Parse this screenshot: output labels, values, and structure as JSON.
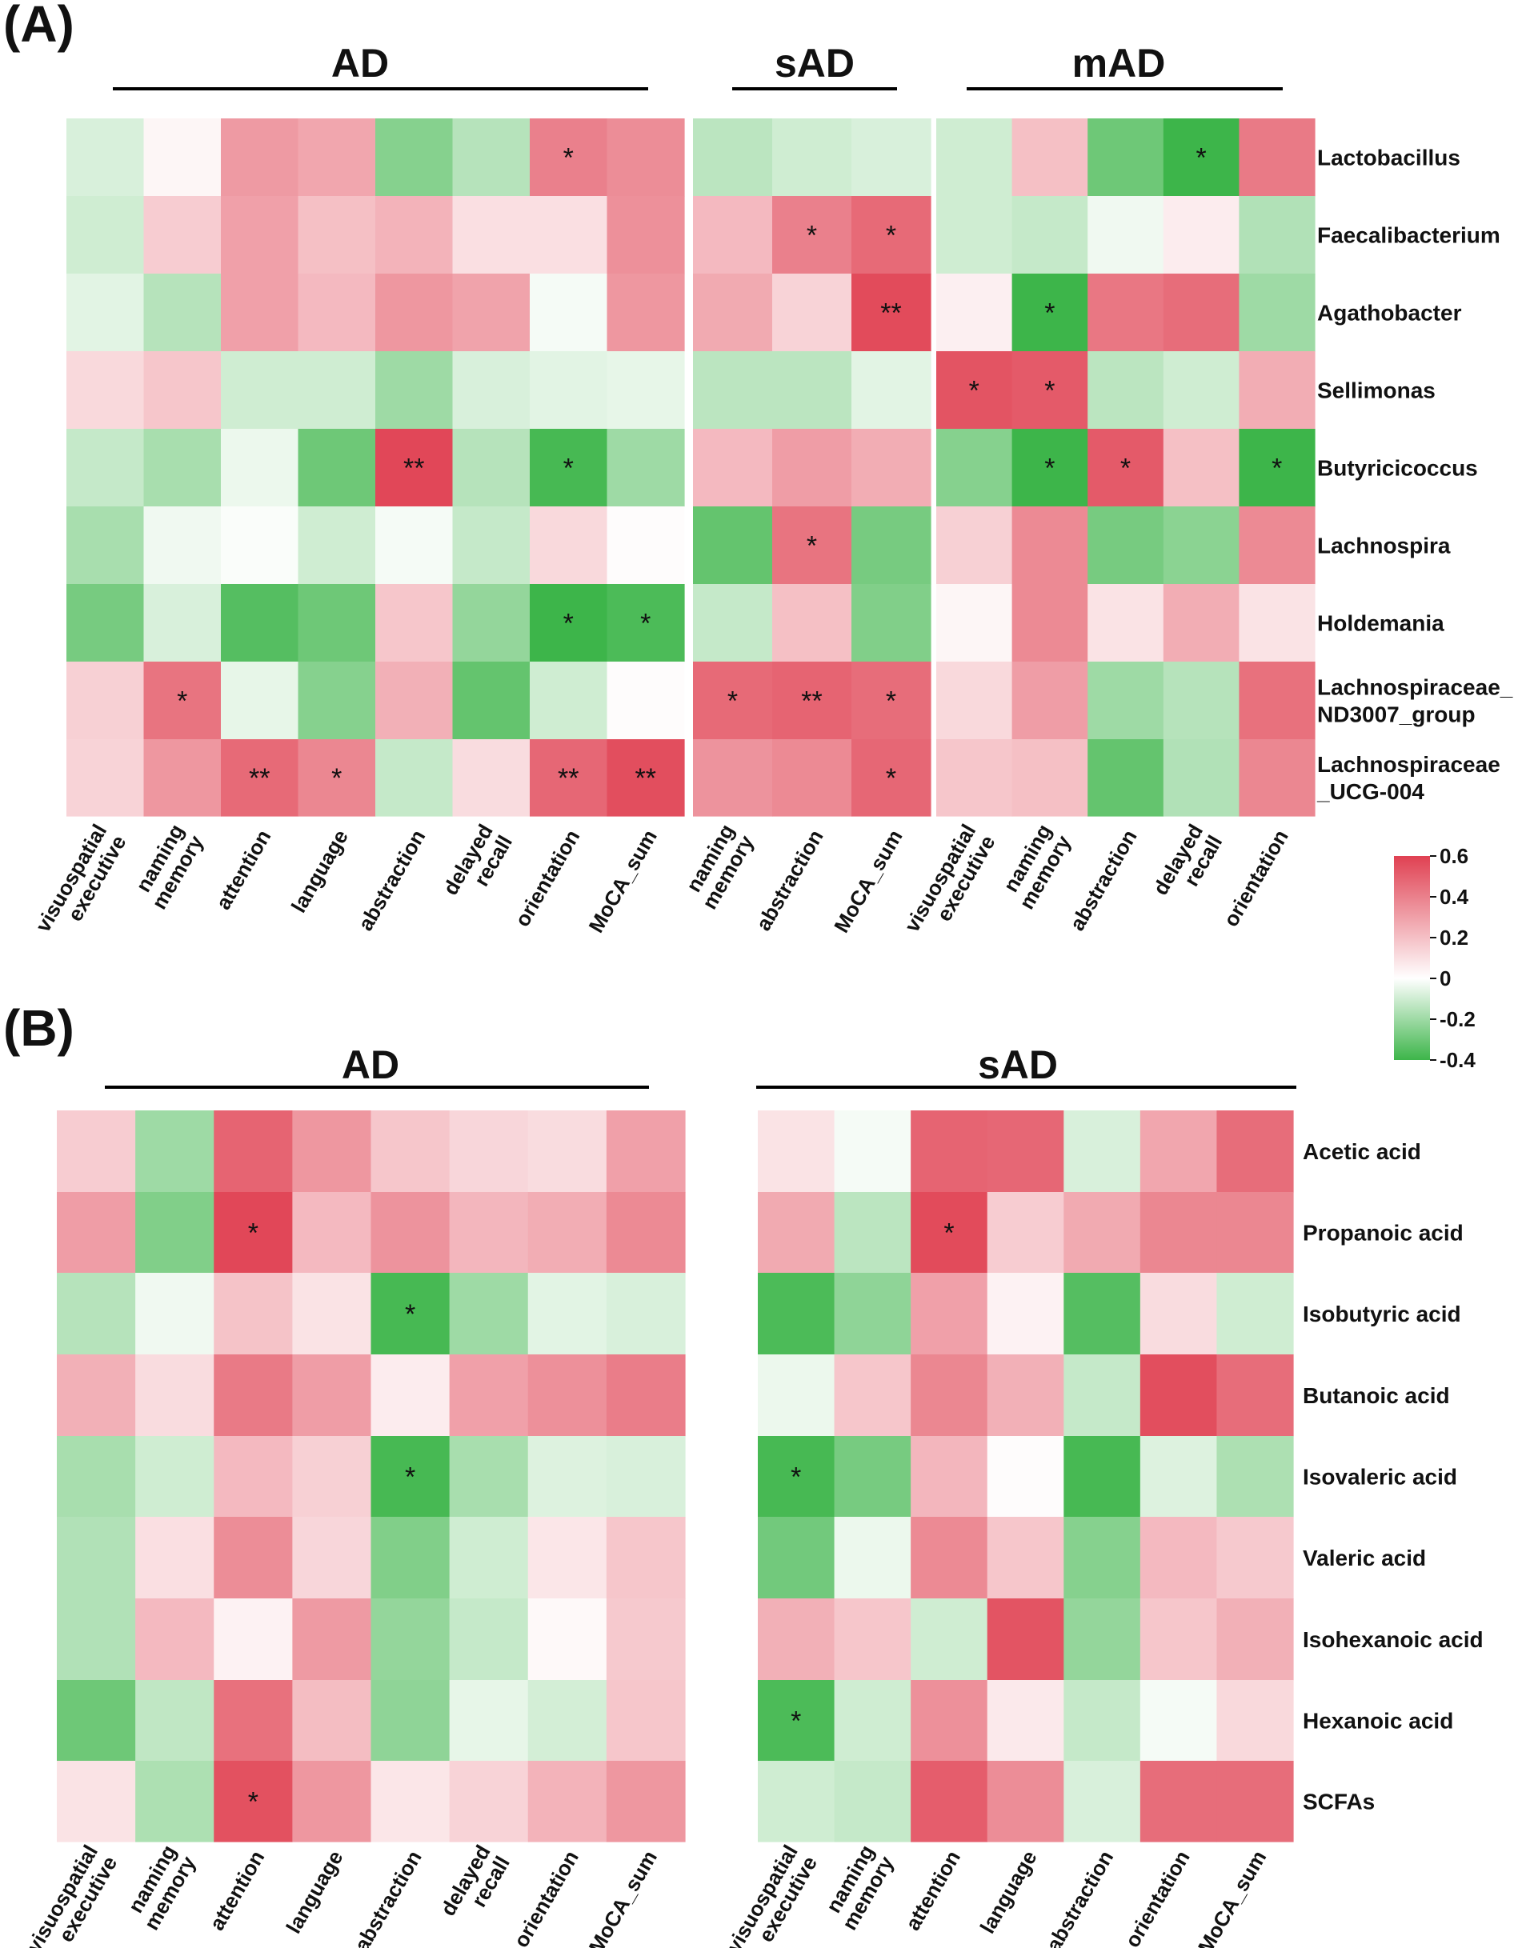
{
  "colors": {
    "negative": "#3db54a",
    "zero": "#ffffff",
    "positive": "#e04152"
  },
  "colorbar": {
    "range": [
      -0.4,
      0.6
    ],
    "ticks": [
      "0.6",
      "0.4",
      "0.2",
      "0",
      "-0.2",
      "-0.4"
    ]
  },
  "chart_data": [
    {
      "type": "heatmap",
      "panel": "(A)",
      "title": "",
      "rows": [
        "Lactobacillus",
        "Faecalibacterium",
        "Agathobacter",
        "Sellimonas",
        "Butyricicoccus",
        "Lachnospira",
        "Holdemania",
        "Lachnospiraceae_\nND3007_group",
        "Lachnospiraceae\n_UCG-004"
      ],
      "groups": [
        {
          "name": "AD",
          "columns": [
            "visuospatial\nexecutive",
            "naming\nmemory",
            "attention",
            "language",
            "abstraction",
            "delayed\nrecall",
            "orientation",
            "MoCA_sum"
          ],
          "values": [
            [
              -0.08,
              0.03,
              0.32,
              0.28,
              -0.25,
              -0.15,
              0.4,
              0.36
            ],
            [
              -0.1,
              0.16,
              0.3,
              0.2,
              0.24,
              0.1,
              0.1,
              0.35
            ],
            [
              -0.06,
              -0.15,
              0.3,
              0.22,
              0.33,
              0.29,
              -0.02,
              0.33
            ],
            [
              0.12,
              0.18,
              -0.1,
              -0.1,
              -0.2,
              -0.08,
              -0.06,
              -0.05
            ],
            [
              -0.12,
              -0.18,
              -0.04,
              -0.3,
              0.58,
              -0.15,
              -0.38,
              -0.2
            ],
            [
              -0.18,
              -0.03,
              -0.01,
              -0.1,
              -0.02,
              -0.12,
              0.12,
              0.01
            ],
            [
              -0.28,
              -0.08,
              -0.35,
              -0.3,
              0.18,
              -0.22,
              -0.4,
              -0.37
            ],
            [
              0.15,
              0.44,
              -0.05,
              -0.25,
              0.25,
              -0.32,
              -0.1,
              0.01
            ],
            [
              0.14,
              0.33,
              0.47,
              0.38,
              -0.12,
              0.11,
              0.48,
              0.56
            ]
          ],
          "significance": [
            [
              "",
              "",
              "",
              "",
              "",
              "",
              "*",
              ""
            ],
            [
              "",
              "",
              "",
              "",
              "",
              "",
              "",
              ""
            ],
            [
              "",
              "",
              "",
              "",
              "",
              "",
              "",
              ""
            ],
            [
              "",
              "",
              "",
              "",
              "",
              "",
              "",
              ""
            ],
            [
              "",
              "",
              "",
              "",
              "**",
              "",
              "*",
              ""
            ],
            [
              "",
              "",
              "",
              "",
              "",
              "",
              "",
              ""
            ],
            [
              "",
              "",
              "",
              "",
              "",
              "",
              "*",
              "*"
            ],
            [
              "",
              "*",
              "",
              "",
              "",
              "",
              "",
              ""
            ],
            [
              "",
              "",
              "**",
              "*",
              "",
              "",
              "**",
              "**"
            ]
          ]
        },
        {
          "name": "sAD",
          "columns": [
            "naming\nmemory",
            "abstraction",
            "MoCA_sum"
          ],
          "values": [
            [
              -0.14,
              -0.1,
              -0.08
            ],
            [
              0.22,
              0.4,
              0.47
            ],
            [
              0.27,
              0.14,
              0.57
            ],
            [
              -0.14,
              -0.14,
              -0.06
            ],
            [
              0.22,
              0.31,
              0.26
            ],
            [
              -0.32,
              0.44,
              -0.28
            ],
            [
              -0.12,
              0.2,
              -0.26
            ],
            [
              0.47,
              0.49,
              0.46
            ],
            [
              0.34,
              0.37,
              0.48
            ]
          ],
          "significance": [
            [
              "",
              "",
              ""
            ],
            [
              "",
              "*",
              "*"
            ],
            [
              "",
              "",
              "**"
            ],
            [
              "",
              "",
              ""
            ],
            [
              "",
              "",
              ""
            ],
            [
              "",
              "*",
              ""
            ],
            [
              "",
              "",
              ""
            ],
            [
              "*",
              "**",
              "*"
            ],
            [
              "",
              "",
              "*"
            ]
          ]
        },
        {
          "name": "mAD",
          "columns": [
            "visuospatial\nexecutive",
            "naming\nmemory",
            "abstraction",
            "delayed\nrecall",
            "orientation"
          ],
          "values": [
            [
              -0.1,
              0.2,
              -0.3,
              -0.4,
              0.42
            ],
            [
              -0.1,
              -0.12,
              -0.03,
              0.06,
              -0.16
            ],
            [
              0.05,
              -0.4,
              0.43,
              0.46,
              -0.2
            ],
            [
              0.54,
              0.52,
              -0.14,
              -0.1,
              0.26
            ],
            [
              -0.25,
              -0.4,
              0.52,
              0.2,
              -0.4
            ],
            [
              0.15,
              0.37,
              -0.28,
              -0.24,
              0.37
            ],
            [
              0.03,
              0.37,
              0.09,
              0.26,
              0.09
            ],
            [
              0.12,
              0.31,
              -0.2,
              -0.15,
              0.45
            ],
            [
              0.18,
              0.2,
              -0.32,
              -0.16,
              0.38
            ]
          ],
          "significance": [
            [
              "",
              "",
              "",
              "*",
              ""
            ],
            [
              "",
              "",
              "",
              "",
              ""
            ],
            [
              "",
              "*",
              "",
              "",
              ""
            ],
            [
              "*",
              "*",
              "",
              "",
              ""
            ],
            [
              "",
              "*",
              "*",
              "",
              "*"
            ],
            [
              "",
              "",
              "",
              "",
              ""
            ],
            [
              "",
              "",
              "",
              "",
              ""
            ],
            [
              "",
              "",
              "",
              "",
              ""
            ],
            [
              "",
              "",
              "",
              "",
              ""
            ]
          ]
        }
      ]
    },
    {
      "type": "heatmap",
      "panel": "(B)",
      "title": "",
      "rows": [
        "Acetic acid",
        "Propanoic acid",
        "Isobutyric acid",
        "Butanoic acid",
        "Isovaleric acid",
        "Valeric acid",
        "Isohexanoic acid",
        "Hexanoic acid",
        "SCFAs"
      ],
      "groups": [
        {
          "name": "AD",
          "columns": [
            "visuospatial\nexecutive",
            "naming\nmemory",
            "attention",
            "language",
            "abstraction",
            "delayed\nrecall",
            "orientation",
            "MoCA_sum"
          ],
          "values": [
            [
              0.16,
              -0.2,
              0.49,
              0.33,
              0.18,
              0.13,
              0.11,
              0.3
            ],
            [
              0.31,
              -0.26,
              0.58,
              0.22,
              0.34,
              0.23,
              0.26,
              0.37
            ],
            [
              -0.15,
              -0.03,
              0.19,
              0.09,
              -0.38,
              -0.2,
              -0.06,
              -0.08
            ],
            [
              0.25,
              0.11,
              0.42,
              0.31,
              0.06,
              0.3,
              0.35,
              0.41
            ],
            [
              -0.18,
              -0.1,
              0.22,
              0.15,
              -0.38,
              -0.18,
              -0.07,
              -0.08
            ],
            [
              -0.16,
              0.1,
              0.36,
              0.13,
              -0.26,
              -0.1,
              0.08,
              0.18
            ],
            [
              -0.16,
              0.22,
              0.04,
              0.32,
              -0.22,
              -0.12,
              0.02,
              0.17
            ],
            [
              -0.3,
              -0.13,
              0.45,
              0.21,
              -0.23,
              -0.05,
              -0.09,
              0.18
            ],
            [
              0.09,
              -0.17,
              0.55,
              0.33,
              0.08,
              0.14,
              0.24,
              0.33
            ]
          ],
          "significance": [
            [
              "",
              "",
              "",
              "",
              "",
              "",
              "",
              ""
            ],
            [
              "",
              "",
              "*",
              "",
              "",
              "",
              "",
              ""
            ],
            [
              "",
              "",
              "",
              "",
              "*",
              "",
              "",
              ""
            ],
            [
              "",
              "",
              "",
              "",
              "",
              "",
              "",
              ""
            ],
            [
              "",
              "",
              "",
              "",
              "*",
              "",
              "",
              ""
            ],
            [
              "",
              "",
              "",
              "",
              "",
              "",
              "",
              ""
            ],
            [
              "",
              "",
              "",
              "",
              "",
              "",
              "",
              ""
            ],
            [
              "",
              "",
              "",
              "",
              "",
              "",
              "",
              ""
            ],
            [
              "",
              "",
              "*",
              "",
              "",
              "",
              "",
              ""
            ]
          ]
        },
        {
          "name": "sAD",
          "columns": [
            "visuospatial\nexecutive",
            "naming\nmemory",
            "attention",
            "language",
            "abstraction",
            "orientation",
            "MoCA_sum"
          ],
          "values": [
            [
              0.09,
              -0.02,
              0.49,
              0.48,
              -0.08,
              0.28,
              0.46
            ],
            [
              0.27,
              -0.14,
              0.57,
              0.16,
              0.27,
              0.38,
              0.38
            ],
            [
              -0.37,
              -0.23,
              0.3,
              0.04,
              -0.35,
              0.11,
              -0.1
            ],
            [
              -0.04,
              0.18,
              0.38,
              0.25,
              -0.12,
              0.56,
              0.46
            ],
            [
              -0.38,
              -0.28,
              0.23,
              0.01,
              -0.38,
              -0.07,
              -0.17
            ],
            [
              -0.29,
              -0.04,
              0.37,
              0.18,
              -0.25,
              0.22,
              0.17
            ],
            [
              0.25,
              0.18,
              -0.1,
              0.54,
              -0.22,
              0.18,
              0.25
            ],
            [
              -0.37,
              -0.1,
              0.35,
              0.07,
              -0.12,
              -0.02,
              0.12
            ],
            [
              -0.1,
              -0.12,
              0.51,
              0.36,
              -0.08,
              0.46,
              0.46
            ]
          ],
          "significance": [
            [
              "",
              "",
              "",
              "",
              "",
              "",
              ""
            ],
            [
              "",
              "",
              "*",
              "",
              "",
              "",
              ""
            ],
            [
              "",
              "",
              "",
              "",
              "",
              "",
              ""
            ],
            [
              "",
              "",
              "",
              "",
              "",
              "",
              ""
            ],
            [
              "*",
              "",
              "",
              "",
              "",
              "",
              ""
            ],
            [
              "",
              "",
              "",
              "",
              "",
              "",
              ""
            ],
            [
              "",
              "",
              "",
              "",
              "",
              "",
              ""
            ],
            [
              "*",
              "",
              "",
              "",
              "",
              "",
              ""
            ],
            [
              "",
              "",
              "",
              "",
              "",
              "",
              ""
            ]
          ]
        }
      ]
    }
  ]
}
